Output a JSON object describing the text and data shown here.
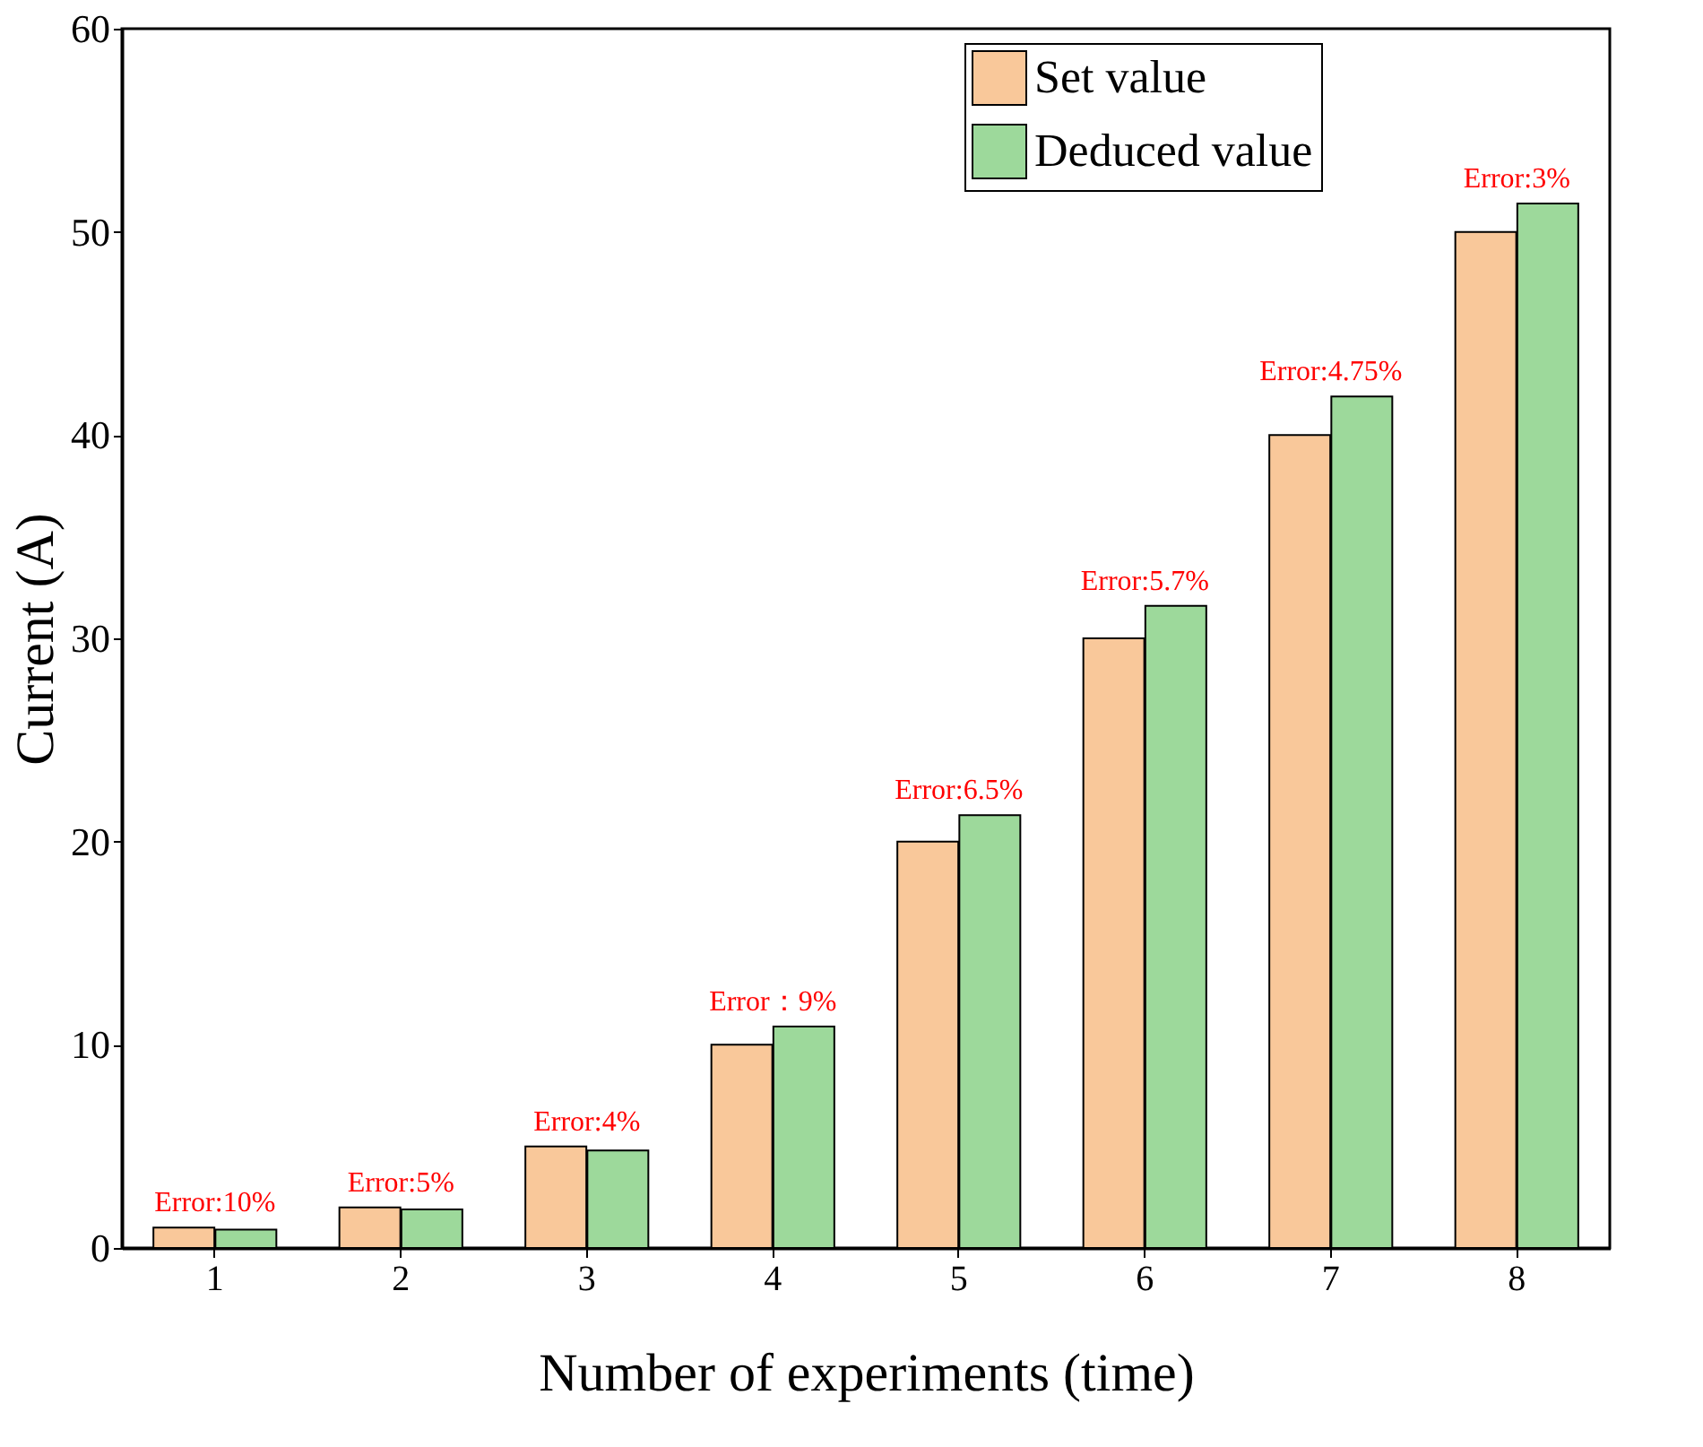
{
  "chart_data": {
    "type": "bar",
    "xlabel": "Number of experiments (time)",
    "ylabel": "Current (A)",
    "categories": [
      "1",
      "2",
      "3",
      "4",
      "5",
      "6",
      "7",
      "8"
    ],
    "series": [
      {
        "name": "Set value",
        "color": "#f9c89a",
        "values": [
          1,
          2,
          5,
          10,
          20,
          30,
          40,
          50
        ]
      },
      {
        "name": "Deduced value",
        "color": "#9dd99b",
        "values": [
          0.9,
          1.9,
          4.8,
          10.9,
          21.3,
          31.6,
          41.9,
          51.4
        ]
      }
    ],
    "ylim": [
      0,
      60
    ],
    "yticks": [
      0,
      10,
      20,
      30,
      40,
      50,
      60
    ],
    "grid": false,
    "legend": "top right",
    "annotations": [
      {
        "text": "Error:10%",
        "x": "1",
        "y": 1
      },
      {
        "text": "Error:5%",
        "x": "2",
        "y": 2
      },
      {
        "text": "Error:4%",
        "x": "3",
        "y": 5
      },
      {
        "text": "Error：9%",
        "x": "4",
        "y": 10.9
      },
      {
        "text": "Error:6.5%",
        "x": "5",
        "y": 21.3
      },
      {
        "text": "Error:5.7%",
        "x": "6",
        "y": 31.6
      },
      {
        "text": "Error:4.75%",
        "x": "7",
        "y": 41.9
      },
      {
        "text": "Error:3%",
        "x": "8",
        "y": 51.4
      }
    ]
  }
}
